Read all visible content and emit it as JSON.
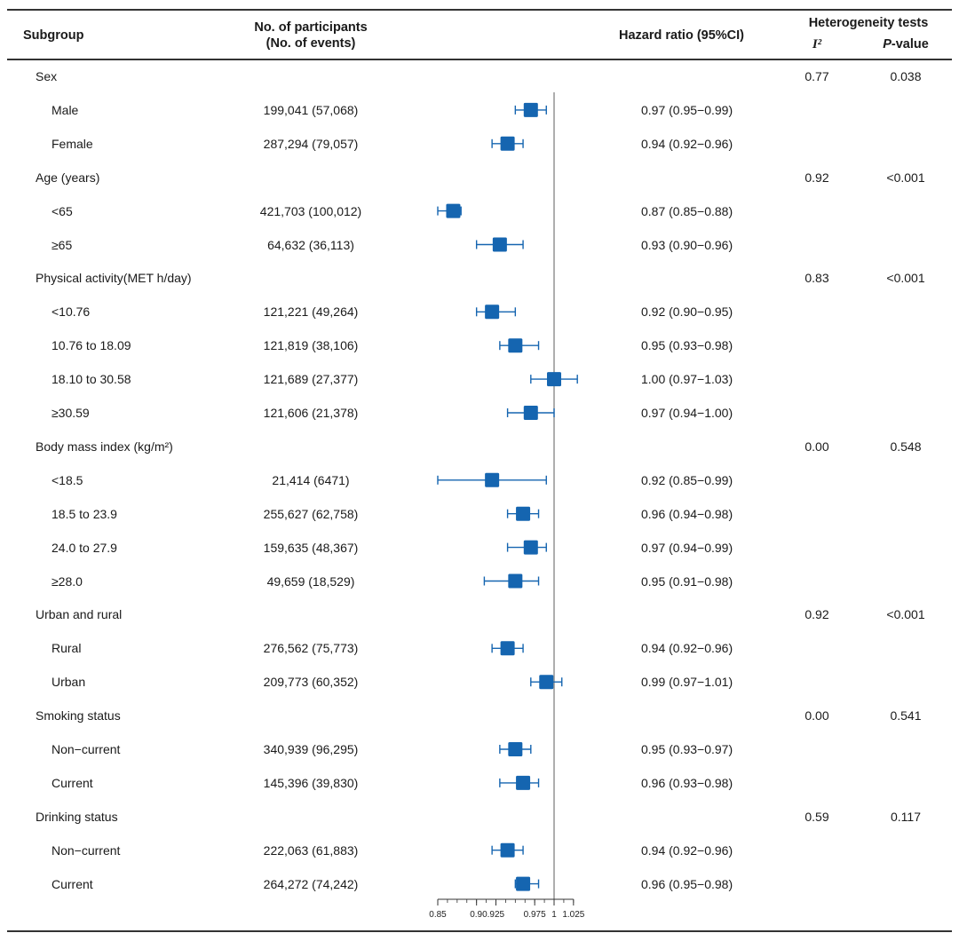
{
  "header": {
    "subgroup": "Subgroup",
    "participants_line1": "No. of participants",
    "participants_line2": "(No. of events)",
    "hazard_ratio": "Hazard ratio (95%CI)",
    "heterogeneity": "Heterogeneity tests",
    "i2": "I²",
    "p_value_prefix": "P",
    "p_value_suffix": "-value"
  },
  "rows": [
    {
      "type": "group",
      "label": "Sex",
      "i2": "0.77",
      "p": "0.038"
    },
    {
      "type": "item",
      "label": "Male",
      "n": "199,041 (57,068)",
      "hr_text": "0.97 (0.95−0.99)",
      "hr": 0.97,
      "lo": 0.95,
      "hi": 0.99
    },
    {
      "type": "item",
      "label": "Female",
      "n": "287,294 (79,057)",
      "hr_text": "0.94 (0.92−0.96)",
      "hr": 0.94,
      "lo": 0.92,
      "hi": 0.96
    },
    {
      "type": "group",
      "label": "Age (years)",
      "i2": "0.92",
      "p": "<0.001"
    },
    {
      "type": "item",
      "label": "<65",
      "n": "421,703 (100,012)",
      "hr_text": "0.87 (0.85−0.88)",
      "hr": 0.87,
      "lo": 0.85,
      "hi": 0.88
    },
    {
      "type": "item",
      "label": "≥65",
      "n": "64,632 (36,113)",
      "hr_text": "0.93 (0.90−0.96)",
      "hr": 0.93,
      "lo": 0.9,
      "hi": 0.96
    },
    {
      "type": "group",
      "label": "Physical activity(MET h/day)",
      "i2": "0.83",
      "p": "<0.001"
    },
    {
      "type": "item",
      "label": "<10.76",
      "n": "121,221 (49,264)",
      "hr_text": "0.92 (0.90−0.95)",
      "hr": 0.92,
      "lo": 0.9,
      "hi": 0.95
    },
    {
      "type": "item",
      "label": "10.76 to 18.09",
      "n": "121,819 (38,106)",
      "hr_text": "0.95 (0.93−0.98)",
      "hr": 0.95,
      "lo": 0.93,
      "hi": 0.98
    },
    {
      "type": "item",
      "label": "18.10 to 30.58",
      "n": "121,689 (27,377)",
      "hr_text": "1.00 (0.97−1.03)",
      "hr": 1.0,
      "lo": 0.97,
      "hi": 1.03
    },
    {
      "type": "item",
      "label": "≥30.59",
      "n": "121,606 (21,378)",
      "hr_text": "0.97 (0.94−1.00)",
      "hr": 0.97,
      "lo": 0.94,
      "hi": 1.0
    },
    {
      "type": "group",
      "label": "Body mass index (kg/m²)",
      "i2": "0.00",
      "p": "0.548"
    },
    {
      "type": "item",
      "label": "<18.5",
      "n": "21,414 (6471)",
      "hr_text": "0.92 (0.85−0.99)",
      "hr": 0.92,
      "lo": 0.85,
      "hi": 0.99
    },
    {
      "type": "item",
      "label": "18.5 to 23.9",
      "n": "255,627 (62,758)",
      "hr_text": "0.96 (0.94−0.98)",
      "hr": 0.96,
      "lo": 0.94,
      "hi": 0.98
    },
    {
      "type": "item",
      "label": "24.0 to 27.9",
      "n": "159,635 (48,367)",
      "hr_text": "0.97 (0.94−0.99)",
      "hr": 0.97,
      "lo": 0.94,
      "hi": 0.99
    },
    {
      "type": "item",
      "label": "≥28.0",
      "n": "49,659 (18,529)",
      "hr_text": "0.95 (0.91−0.98)",
      "hr": 0.95,
      "lo": 0.91,
      "hi": 0.98
    },
    {
      "type": "group",
      "label": "Urban and rural",
      "i2": "0.92",
      "p": "<0.001"
    },
    {
      "type": "item",
      "label": "Rural",
      "n": "276,562 (75,773)",
      "hr_text": "0.94 (0.92−0.96)",
      "hr": 0.94,
      "lo": 0.92,
      "hi": 0.96
    },
    {
      "type": "item",
      "label": "Urban",
      "n": "209,773 (60,352)",
      "hr_text": "0.99 (0.97−1.01)",
      "hr": 0.99,
      "lo": 0.97,
      "hi": 1.01
    },
    {
      "type": "group",
      "label": "Smoking status",
      "i2": "0.00",
      "p": "0.541"
    },
    {
      "type": "item",
      "label": "Non−current",
      "n": "340,939 (96,295)",
      "hr_text": "0.95 (0.93−0.97)",
      "hr": 0.95,
      "lo": 0.93,
      "hi": 0.97
    },
    {
      "type": "item",
      "label": "Current",
      "n": "145,396 (39,830)",
      "hr_text": "0.96 (0.93−0.98)",
      "hr": 0.96,
      "lo": 0.93,
      "hi": 0.98
    },
    {
      "type": "group",
      "label": "Drinking status",
      "i2": "0.59",
      "p": "0.117"
    },
    {
      "type": "item",
      "label": "Non−current",
      "n": "222,063 (61,883)",
      "hr_text": "0.94 (0.92−0.96)",
      "hr": 0.94,
      "lo": 0.92,
      "hi": 0.96
    },
    {
      "type": "item",
      "label": "Current",
      "n": "264,272 (74,242)",
      "hr_text": "0.96 (0.95−0.98)",
      "hr": 0.96,
      "lo": 0.95,
      "hi": 0.98
    }
  ],
  "chart_data": {
    "type": "scatter",
    "subtype": "forest-plot",
    "title": "",
    "xlabel": "",
    "ylabel": "",
    "xlim": [
      0.85,
      1.03
    ],
    "reference_line": 1.0,
    "x_ticks": [
      0.85,
      0.9,
      0.925,
      0.975,
      1,
      1.025
    ],
    "x_tick_labels": [
      "0.85",
      "0.90.925",
      "",
      "0.975",
      "1",
      "1.025"
    ],
    "marker_color": "#1565b0",
    "grid": false
  }
}
